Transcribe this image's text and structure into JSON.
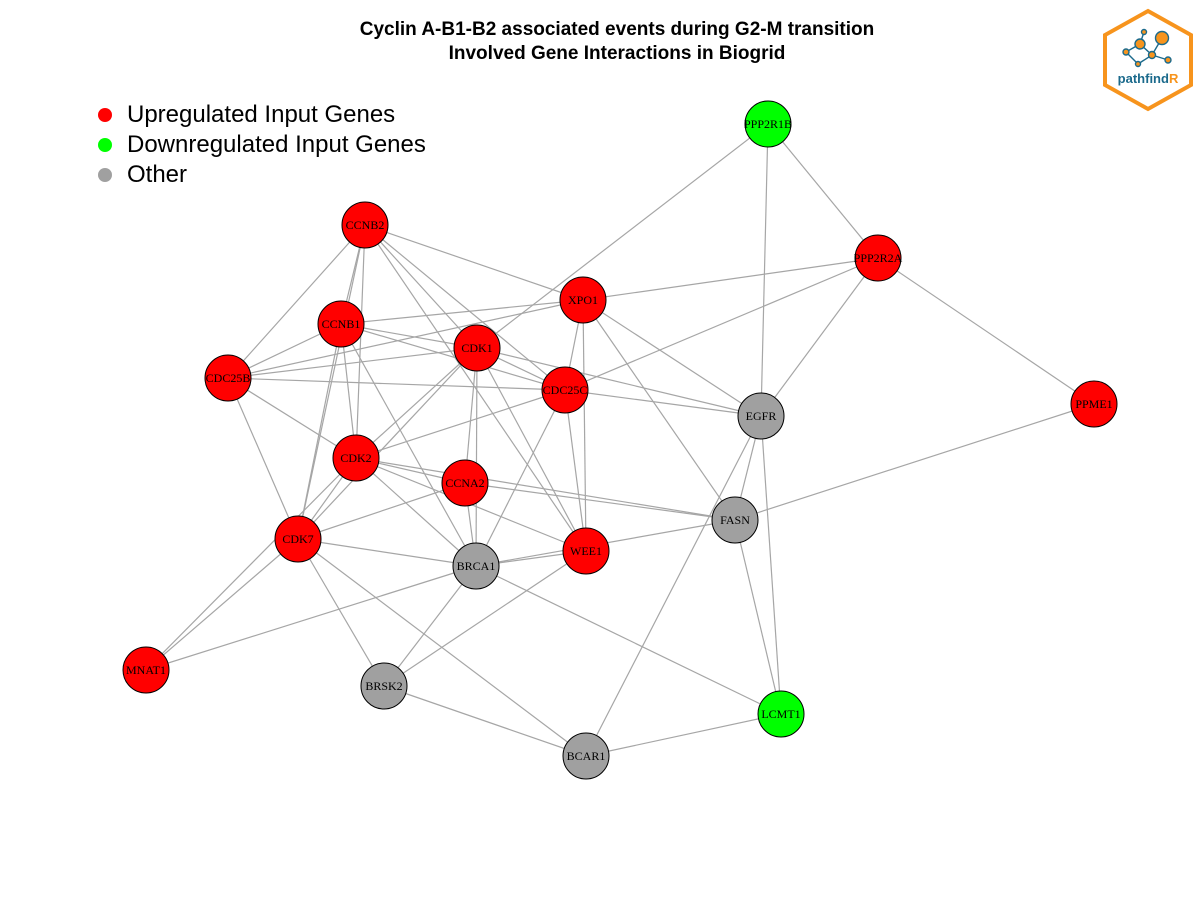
{
  "title": {
    "line1": "Cyclin A-B1-B2 associated events during G2-M transition",
    "line2": "Involved Gene Interactions in Biogrid"
  },
  "legend": {
    "items": [
      {
        "key": "up",
        "label": "Upregulated Input Genes",
        "color": "#ff0000"
      },
      {
        "key": "down",
        "label": "Downregulated Input Genes",
        "color": "#00ff00"
      },
      {
        "key": "other",
        "label": "Other",
        "color": "#a0a0a0"
      }
    ]
  },
  "logo": {
    "text_main": "pathfind",
    "text_accent": "R",
    "border_color": "#f7941d",
    "text_color": "#1b6a8c"
  },
  "colors": {
    "up": "#ff0000",
    "down": "#00ff00",
    "other": "#a0a0a0",
    "edge": "#a6a6a6",
    "node_stroke": "#000000"
  },
  "network": {
    "nodes": [
      {
        "id": "PPP2R1B",
        "type": "down"
      },
      {
        "id": "CCNB2",
        "type": "up"
      },
      {
        "id": "PPP2R2A",
        "type": "up"
      },
      {
        "id": "XPO1",
        "type": "up"
      },
      {
        "id": "CCNB1",
        "type": "up"
      },
      {
        "id": "CDK1",
        "type": "up"
      },
      {
        "id": "CDC25B",
        "type": "up"
      },
      {
        "id": "CDC25C",
        "type": "up"
      },
      {
        "id": "EGFR",
        "type": "other"
      },
      {
        "id": "PPME1",
        "type": "up"
      },
      {
        "id": "CDK2",
        "type": "up"
      },
      {
        "id": "CCNA2",
        "type": "up"
      },
      {
        "id": "FASN",
        "type": "other"
      },
      {
        "id": "CDK7",
        "type": "up"
      },
      {
        "id": "WEE1",
        "type": "up"
      },
      {
        "id": "BRCA1",
        "type": "other"
      },
      {
        "id": "MNAT1",
        "type": "up"
      },
      {
        "id": "BRSK2",
        "type": "other"
      },
      {
        "id": "LCMT1",
        "type": "down"
      },
      {
        "id": "BCAR1",
        "type": "other"
      }
    ],
    "edges": [
      [
        "PPP2R1B",
        "PPP2R2A"
      ],
      [
        "PPP2R1B",
        "EGFR"
      ],
      [
        "PPP2R1B",
        "CDK1"
      ],
      [
        "PPP2R2A",
        "XPO1"
      ],
      [
        "PPP2R2A",
        "CDC25C"
      ],
      [
        "PPP2R2A",
        "EGFR"
      ],
      [
        "PPP2R2A",
        "PPME1"
      ],
      [
        "CCNB2",
        "CCNB1"
      ],
      [
        "CCNB2",
        "CDK1"
      ],
      [
        "CCNB2",
        "XPO1"
      ],
      [
        "CCNB2",
        "CDC25C"
      ],
      [
        "CCNB2",
        "CDC25B"
      ],
      [
        "CCNB2",
        "CDK2"
      ],
      [
        "CCNB2",
        "CDK7"
      ],
      [
        "CCNB2",
        "WEE1"
      ],
      [
        "XPO1",
        "CCNB1"
      ],
      [
        "XPO1",
        "CDC25B"
      ],
      [
        "XPO1",
        "CDC25C"
      ],
      [
        "XPO1",
        "EGFR"
      ],
      [
        "XPO1",
        "FASN"
      ],
      [
        "XPO1",
        "WEE1"
      ],
      [
        "CCNB1",
        "CDK1"
      ],
      [
        "CCNB1",
        "CDC25B"
      ],
      [
        "CCNB1",
        "CDC25C"
      ],
      [
        "CCNB1",
        "CDK2"
      ],
      [
        "CCNB1",
        "CDK7"
      ],
      [
        "CCNB1",
        "BRCA1"
      ],
      [
        "CDK1",
        "CDC25B"
      ],
      [
        "CDK1",
        "CDC25C"
      ],
      [
        "CDK1",
        "EGFR"
      ],
      [
        "CDK1",
        "CDK2"
      ],
      [
        "CDK1",
        "CCNA2"
      ],
      [
        "CDK1",
        "CDK7"
      ],
      [
        "CDK1",
        "BRCA1"
      ],
      [
        "CDK1",
        "WEE1"
      ],
      [
        "CDC25B",
        "CDC25C"
      ],
      [
        "CDC25B",
        "CDK2"
      ],
      [
        "CDC25B",
        "CDK7"
      ],
      [
        "CDC25C",
        "CDK2"
      ],
      [
        "CDC25C",
        "EGFR"
      ],
      [
        "CDC25C",
        "BRCA1"
      ],
      [
        "CDC25C",
        "WEE1"
      ],
      [
        "EGFR",
        "FASN"
      ],
      [
        "EGFR",
        "LCMT1"
      ],
      [
        "EGFR",
        "BCAR1"
      ],
      [
        "PPME1",
        "FASN"
      ],
      [
        "CDK2",
        "CCNA2"
      ],
      [
        "CDK2",
        "CDK7"
      ],
      [
        "CDK2",
        "FASN"
      ],
      [
        "CDK2",
        "BRCA1"
      ],
      [
        "CDK2",
        "MNAT1"
      ],
      [
        "CDK2",
        "WEE1"
      ],
      [
        "CCNA2",
        "CDK7"
      ],
      [
        "CCNA2",
        "FASN"
      ],
      [
        "CCNA2",
        "BRCA1"
      ],
      [
        "FASN",
        "BRCA1"
      ],
      [
        "FASN",
        "LCMT1"
      ],
      [
        "CDK7",
        "BRCA1"
      ],
      [
        "CDK7",
        "MNAT1"
      ],
      [
        "CDK7",
        "BRSK2"
      ],
      [
        "CDK7",
        "BCAR1"
      ],
      [
        "WEE1",
        "BRCA1"
      ],
      [
        "WEE1",
        "BRSK2"
      ],
      [
        "BRCA1",
        "MNAT1"
      ],
      [
        "BRCA1",
        "BRSK2"
      ],
      [
        "BRCA1",
        "LCMT1"
      ],
      [
        "BRSK2",
        "BCAR1"
      ],
      [
        "LCMT1",
        "BCAR1"
      ]
    ]
  }
}
